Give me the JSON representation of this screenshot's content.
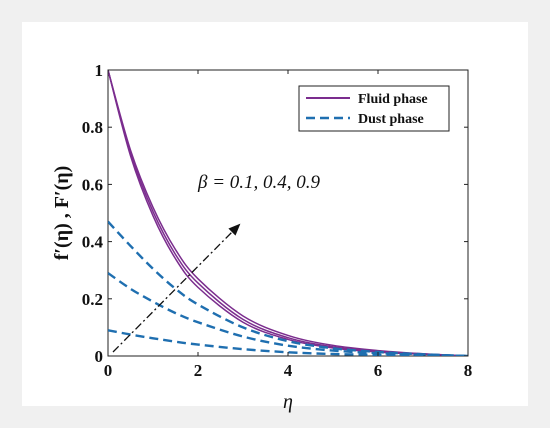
{
  "chart_data": {
    "type": "line",
    "xlabel": "η",
    "ylabel": "f′(η) , F′(η)",
    "xlim": [
      0,
      8
    ],
    "ylim": [
      0,
      1
    ],
    "xticks": [
      "0",
      "2",
      "4",
      "6",
      "8"
    ],
    "yticks": [
      "0",
      "0.2",
      "0.4",
      "0.6",
      "0.8",
      "1"
    ],
    "grid": false,
    "legend_position": "top-right",
    "legend": [
      {
        "label": "Fluid phase",
        "style": "solid",
        "color": "#7b2d8e"
      },
      {
        "label": "Dust phase",
        "style": "dashed",
        "color": "#1f6fb0"
      }
    ],
    "annotation": "β = 0.1, 0.4, 0.9",
    "series": [
      {
        "group": "Fluid phase",
        "color": "#7b2d8e",
        "style": "solid",
        "x": [
          0,
          0.5,
          1,
          1.5,
          2,
          3,
          4,
          5,
          6,
          7,
          8
        ],
        "y": [
          1.0,
          0.7,
          0.49,
          0.34,
          0.24,
          0.118,
          0.058,
          0.028,
          0.014,
          0.006,
          0.0
        ]
      },
      {
        "group": "Fluid phase",
        "color": "#7b2d8e",
        "style": "solid",
        "x": [
          0,
          0.5,
          1,
          1.5,
          2,
          3,
          4,
          5,
          6,
          7,
          8
        ],
        "y": [
          1.0,
          0.71,
          0.505,
          0.355,
          0.255,
          0.128,
          0.064,
          0.032,
          0.016,
          0.007,
          0.0
        ]
      },
      {
        "group": "Fluid phase",
        "color": "#7b2d8e",
        "style": "solid",
        "x": [
          0,
          0.5,
          1,
          1.5,
          2,
          3,
          4,
          5,
          6,
          7,
          8
        ],
        "y": [
          1.0,
          0.72,
          0.52,
          0.372,
          0.27,
          0.14,
          0.072,
          0.037,
          0.019,
          0.008,
          0.0
        ]
      },
      {
        "group": "Dust phase",
        "color": "#1f6fb0",
        "style": "dashed",
        "x": [
          0,
          0.5,
          1,
          1.5,
          2,
          3,
          4,
          5,
          6,
          7,
          8
        ],
        "y": [
          0.47,
          0.385,
          0.305,
          0.235,
          0.18,
          0.1,
          0.052,
          0.027,
          0.014,
          0.006,
          0.0
        ]
      },
      {
        "group": "Dust phase",
        "color": "#1f6fb0",
        "style": "dashed",
        "x": [
          0,
          0.5,
          1,
          1.5,
          2,
          3,
          4,
          5,
          6,
          7,
          8
        ],
        "y": [
          0.29,
          0.235,
          0.19,
          0.15,
          0.118,
          0.068,
          0.036,
          0.019,
          0.01,
          0.004,
          0.0
        ]
      },
      {
        "group": "Dust phase",
        "color": "#1f6fb0",
        "style": "dashed",
        "x": [
          0,
          0.5,
          1,
          1.5,
          2,
          3,
          4,
          5,
          6,
          7,
          8
        ],
        "y": [
          0.09,
          0.075,
          0.062,
          0.05,
          0.04,
          0.024,
          0.013,
          0.007,
          0.004,
          0.002,
          0.0
        ]
      }
    ]
  }
}
